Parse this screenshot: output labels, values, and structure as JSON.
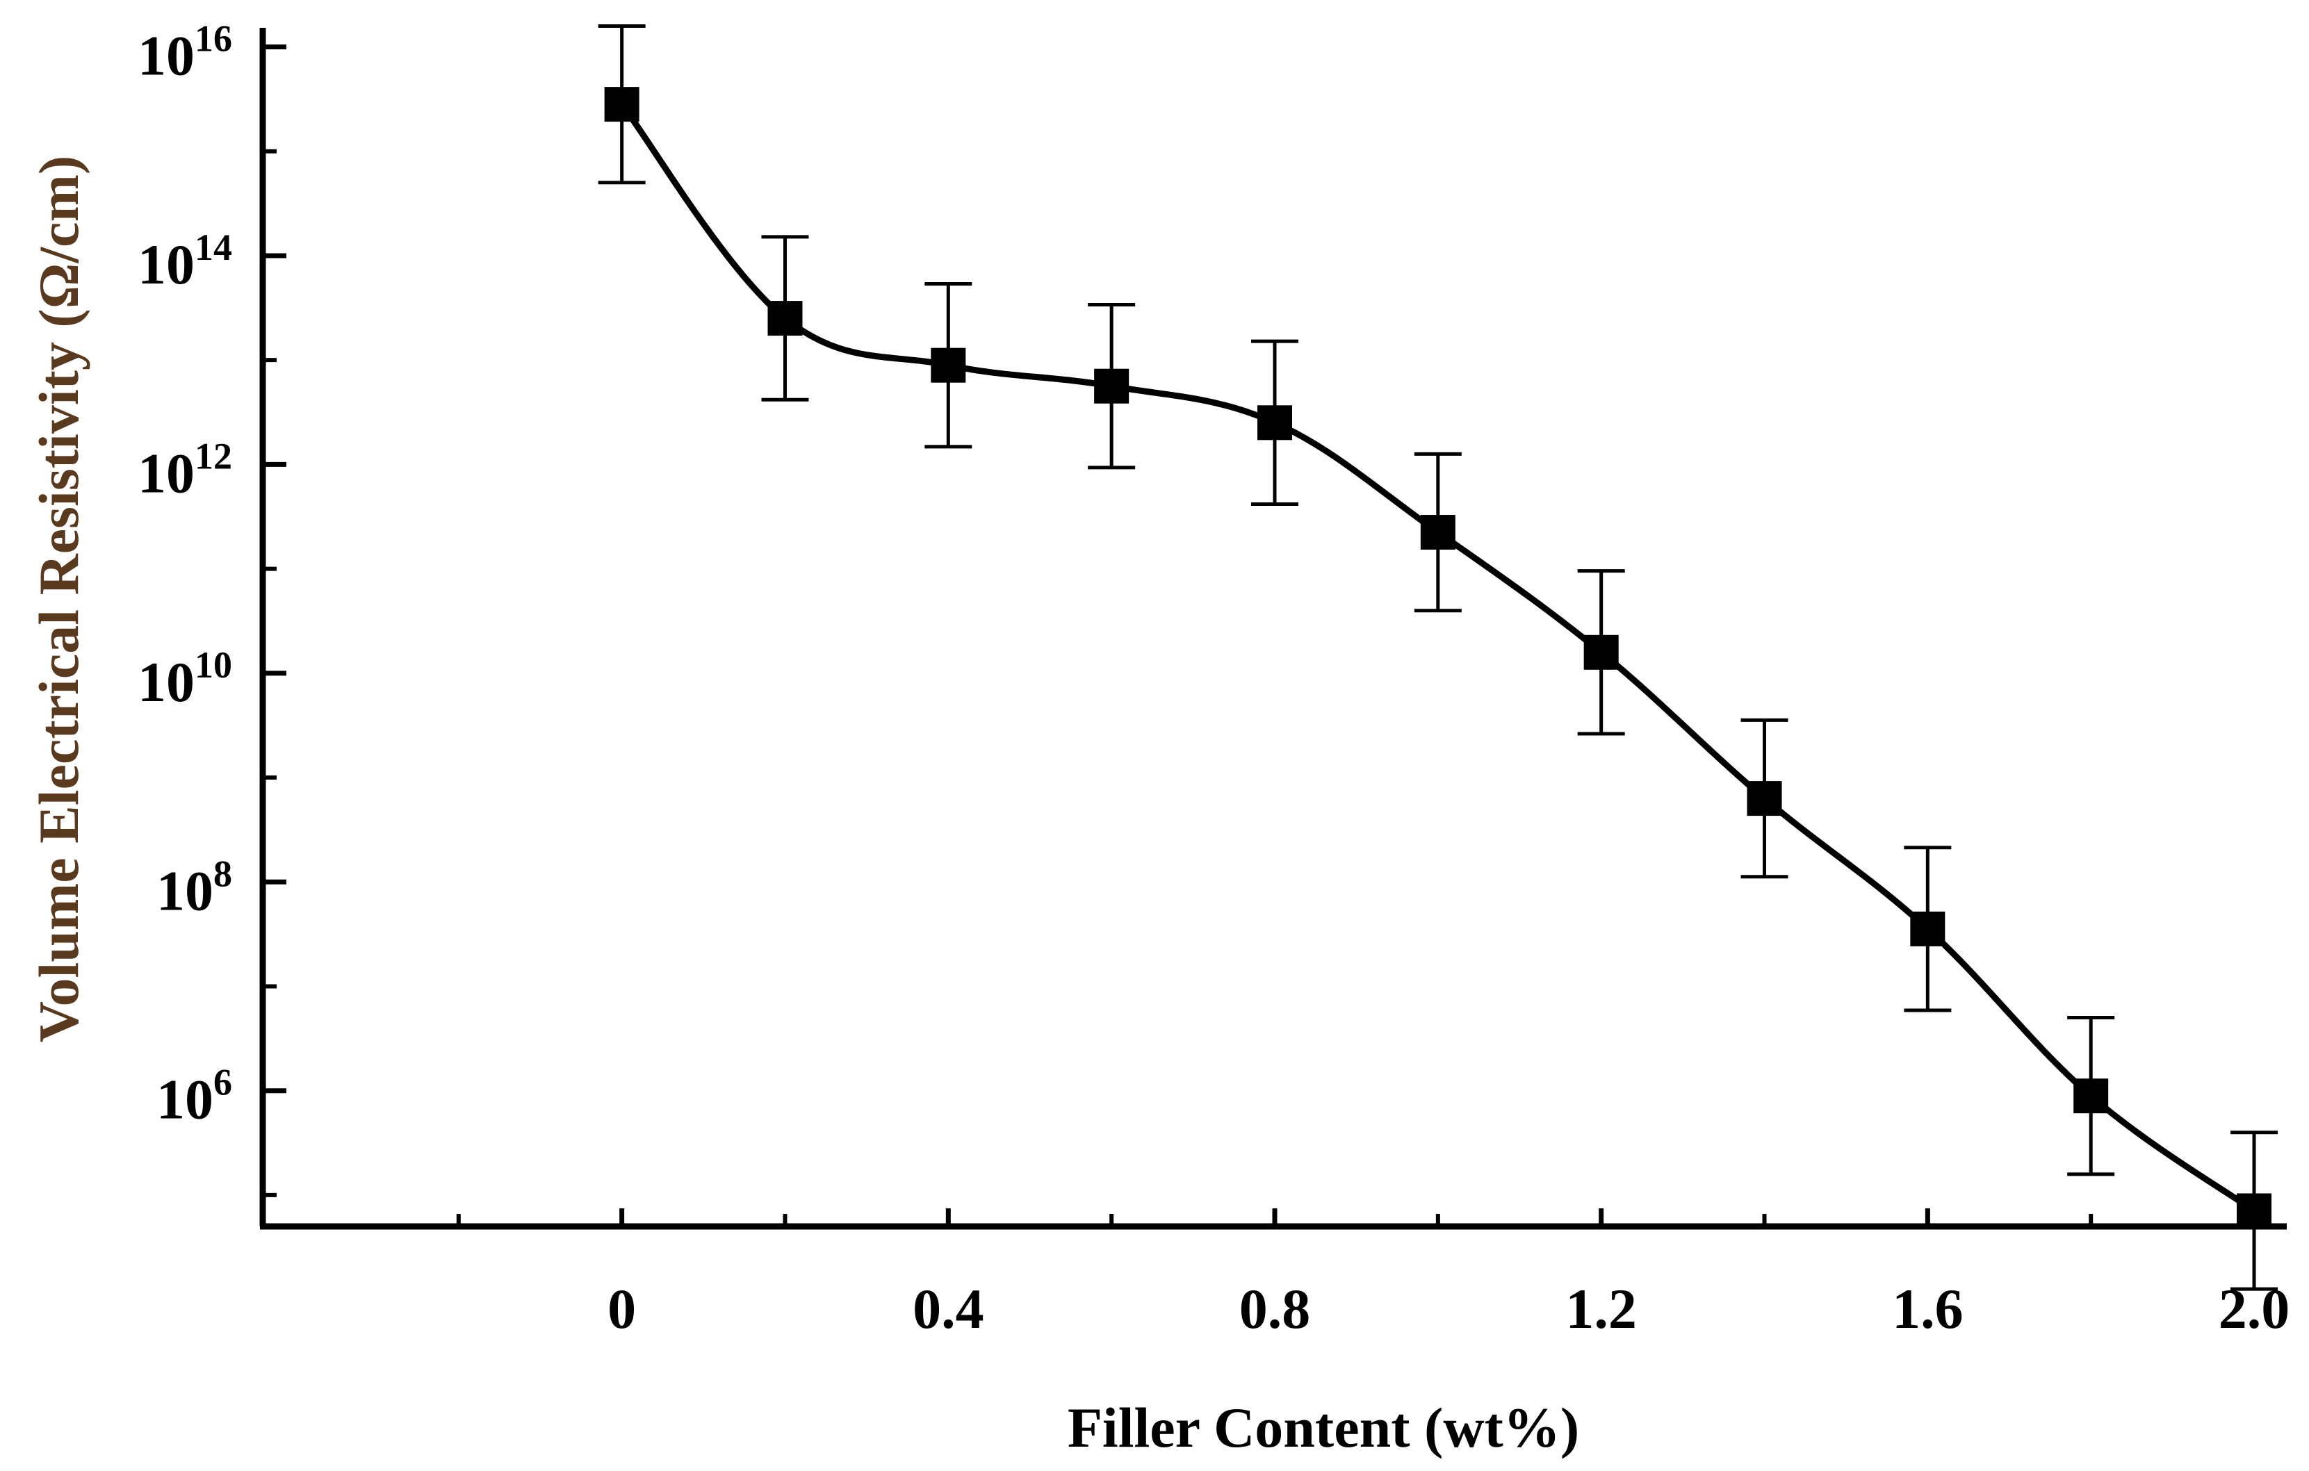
{
  "chart_data": {
    "type": "line",
    "title": "",
    "xlabel": "Filler Content (wt%)",
    "ylabel": "Volume Electrical Resistivity  (Ω/cm)",
    "yscale": "log",
    "xlim": [
      -0.44,
      2.04
    ],
    "ylim_exponent": [
      4.7,
      16.05
    ],
    "x_ticks": [
      0,
      0.4,
      0.8,
      1.2,
      1.6,
      2.0
    ],
    "x_tick_labels": [
      "0",
      "0.4",
      "0.8",
      "1.2",
      "1.6",
      "2.0"
    ],
    "x_minor_ticks": [
      -0.2,
      0.2,
      0.6,
      1.0,
      1.4,
      1.8
    ],
    "y_ticks": [
      {
        "base": "10",
        "exp": "16",
        "value_exp": 16
      },
      {
        "base": "10",
        "exp": "14",
        "value_exp": 14
      },
      {
        "base": "10",
        "exp": "12",
        "value_exp": 12
      },
      {
        "base": "10",
        "exp": "10",
        "value_exp": 10
      },
      {
        "base": "10",
        "exp": "8",
        "value_exp": 8
      },
      {
        "base": "10",
        "exp": "6",
        "value_exp": 6
      }
    ],
    "y_minor_ticks_exp": [
      15,
      13,
      11,
      9,
      7,
      5
    ],
    "series": [
      {
        "name": "Volume Electrical Resistivity",
        "marker": "square",
        "color": "#000000",
        "x": [
          0,
          0.2,
          0.4,
          0.6,
          0.8,
          1.0,
          1.2,
          1.4,
          1.6,
          1.8,
          2.0
        ],
        "y_log10": [
          15.45,
          13.4,
          12.95,
          12.75,
          12.4,
          11.35,
          10.2,
          8.8,
          7.55,
          5.95,
          4.85
        ],
        "error_log10": [
          0.75,
          0.78,
          0.78,
          0.78,
          0.78,
          0.75,
          0.78,
          0.75,
          0.78,
          0.75,
          0.75
        ]
      }
    ],
    "colors": {
      "ylabel": "#5a3a1e",
      "axes": "#000000",
      "line": "#000000"
    }
  }
}
